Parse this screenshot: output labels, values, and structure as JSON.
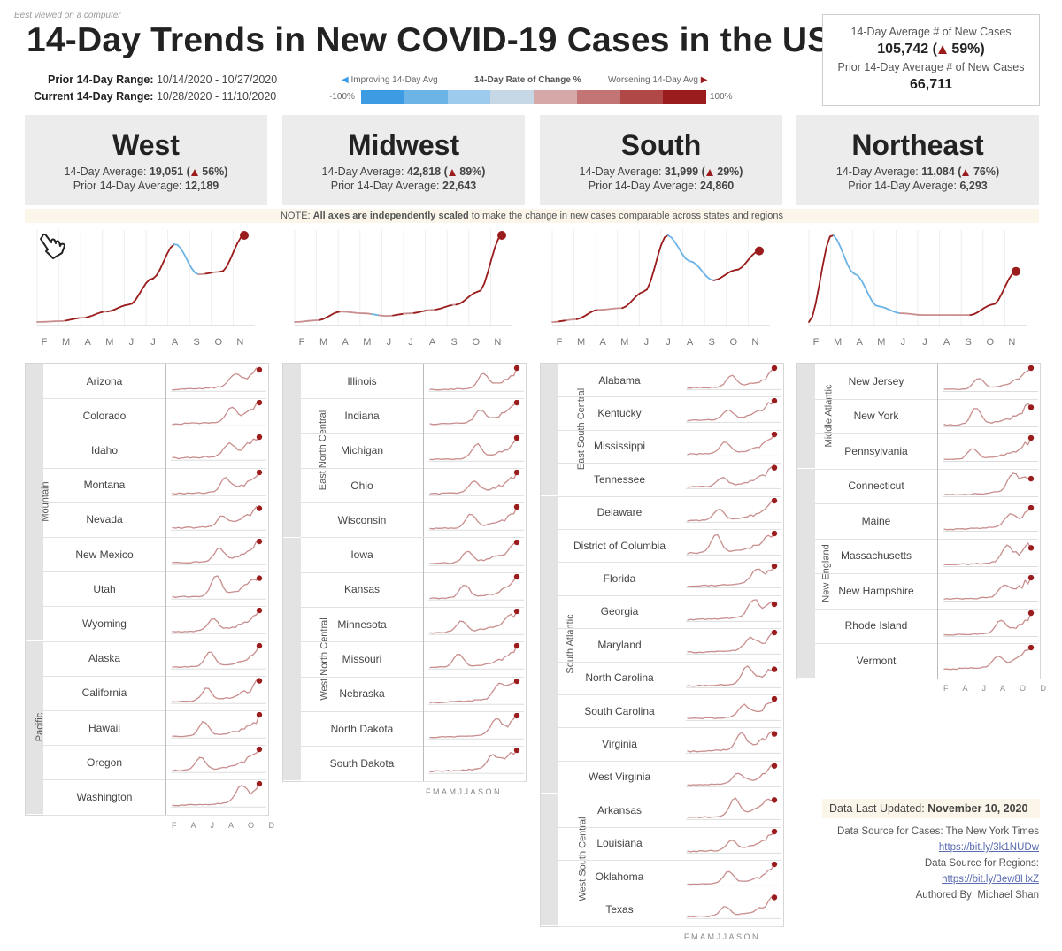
{
  "page": {
    "best_viewed": "Best viewed on a computer",
    "title": "14-Day Trends in New COVID-19 Cases in the US",
    "prior_range_label": "Prior 14-Day Range:",
    "prior_range_value": "10/14/2020 - 10/27/2020",
    "current_range_label": "Current 14-Day Range:",
    "current_range_value": "10/28/2020 - 11/10/2020",
    "axes_note_prefix": "NOTE: ",
    "axes_note_bold": "All axes are independently scaled",
    "axes_note_rest": " to make the change in new cases comparable across states and regions"
  },
  "legend": {
    "improving": "Improving 14-Day Avg",
    "title": "14-Day Rate of Change %",
    "worsening": "Worsening 14-Day Avg",
    "min": "-100%",
    "max": "100%",
    "colors": [
      "#3d9be3",
      "#6cb3e6",
      "#9ccbee",
      "#c6d8e6",
      "#d6a8a8",
      "#c37575",
      "#b04848",
      "#9b1c1c"
    ]
  },
  "summary": {
    "avg_label": "14-Day Average # of New Cases",
    "avg_value": "105,742",
    "avg_pct": "59%)",
    "avg_open": "(",
    "prior_label": "Prior 14-Day Average # of New Cases",
    "prior_value": "66,711"
  },
  "colors": {
    "worsening": "#9b1c1c",
    "improving": "#6cb3e6",
    "mild": "#c98f8f",
    "band": "#e3e3e3"
  },
  "cursor_icon": "hand-pointer-icon",
  "regions": [
    {
      "name": "West",
      "avg_label": "14-Day Average:",
      "avg": "19,051",
      "pct": "56%)",
      "prior_label": "Prior 14-Day Average:",
      "prior": "12,189"
    },
    {
      "name": "Midwest",
      "avg_label": "14-Day Average:",
      "avg": "42,818",
      "pct": "89%)",
      "prior_label": "Prior 14-Day Average:",
      "prior": "22,643"
    },
    {
      "name": "South",
      "avg_label": "14-Day Average:",
      "avg": "31,999",
      "pct": "29%)",
      "prior_label": "Prior 14-Day Average:",
      "prior": "24,860"
    },
    {
      "name": "Northeast",
      "avg_label": "14-Day Average:",
      "avg": "11,084",
      "pct": "76%)",
      "prior_label": "Prior 14-Day Average:",
      "prior": "6,293"
    }
  ],
  "month_ticks": [
    "F",
    "M",
    "A",
    "M",
    "J",
    "J",
    "A",
    "S",
    "O",
    "N"
  ],
  "mini_axes": {
    "west": "F A J A O D",
    "midwest": "FMAMJJASON",
    "south": "FMAMJJASON",
    "northeast": "F A J A O D"
  },
  "groups": {
    "mountain": "Mountain",
    "pacific": "Pacific",
    "enc": "East North Central",
    "wnc": "West North Central",
    "esc": "East South Central",
    "sa": "South Atlantic",
    "wsc": "West South Central",
    "ma": "Middle Atlantic",
    "ne": "New England"
  },
  "states": {
    "west": [
      "Arizona",
      "Colorado",
      "Idaho",
      "Montana",
      "Nevada",
      "New Mexico",
      "Utah",
      "Wyoming",
      "Alaska",
      "California",
      "Hawaii",
      "Oregon",
      "Washington"
    ],
    "midwest": [
      "Illinois",
      "Indiana",
      "Michigan",
      "Ohio",
      "Wisconsin",
      "Iowa",
      "Kansas",
      "Minnesota",
      "Missouri",
      "Nebraska",
      "North Dakota",
      "South Dakota"
    ],
    "south": [
      "Alabama",
      "Kentucky",
      "Mississippi",
      "Tennessee",
      "Delaware",
      "District of Columbia",
      "Florida",
      "Georgia",
      "Maryland",
      "North Carolina",
      "South Carolina",
      "Virginia",
      "West Virginia",
      "Arkansas",
      "Louisiana",
      "Oklahoma",
      "Texas"
    ],
    "northeast": [
      "New Jersey",
      "New York",
      "Pennsylvania",
      "Connecticut",
      "Maine",
      "Massachusetts",
      "New Hampshire",
      "Rhode Island",
      "Vermont"
    ]
  },
  "footer": {
    "updated_label": "Data Last Updated:",
    "updated_value": "November 10, 2020",
    "cases_source": "Data Source for Cases: The New York Times",
    "cases_link": "https://bit.ly/3k1NUDw",
    "regions_source": "Data Source for Regions:",
    "regions_link": "https://bit.ly/3ew8HxZ",
    "author": "Authored By: Michael Shan"
  },
  "chart_data": [
    {
      "type": "line",
      "name": "West",
      "x": [
        "F",
        "M",
        "A",
        "M",
        "J",
        "J",
        "A",
        "S",
        "O",
        "N"
      ],
      "series": [
        {
          "values": [
            0,
            1,
            5,
            12,
            20,
            50,
            90,
            55,
            58,
            100
          ]
        }
      ]
    },
    {
      "type": "line",
      "name": "Midwest",
      "x": [
        "F",
        "M",
        "A",
        "M",
        "J",
        "J",
        "A",
        "S",
        "O",
        "N"
      ],
      "series": [
        {
          "values": [
            0,
            2,
            12,
            10,
            7,
            10,
            14,
            20,
            35,
            100
          ]
        }
      ]
    },
    {
      "type": "line",
      "name": "South",
      "x": [
        "F",
        "M",
        "A",
        "M",
        "J",
        "J",
        "A",
        "S",
        "O",
        "N"
      ],
      "series": [
        {
          "values": [
            0,
            3,
            14,
            16,
            35,
            100,
            70,
            48,
            60,
            82
          ]
        }
      ]
    },
    {
      "type": "line",
      "name": "Northeast",
      "x": [
        "F",
        "M",
        "A",
        "M",
        "J",
        "J",
        "A",
        "S",
        "O",
        "N"
      ],
      "series": [
        {
          "values": [
            0,
            100,
            55,
            18,
            10,
            8,
            8,
            8,
            20,
            58
          ]
        }
      ]
    }
  ]
}
